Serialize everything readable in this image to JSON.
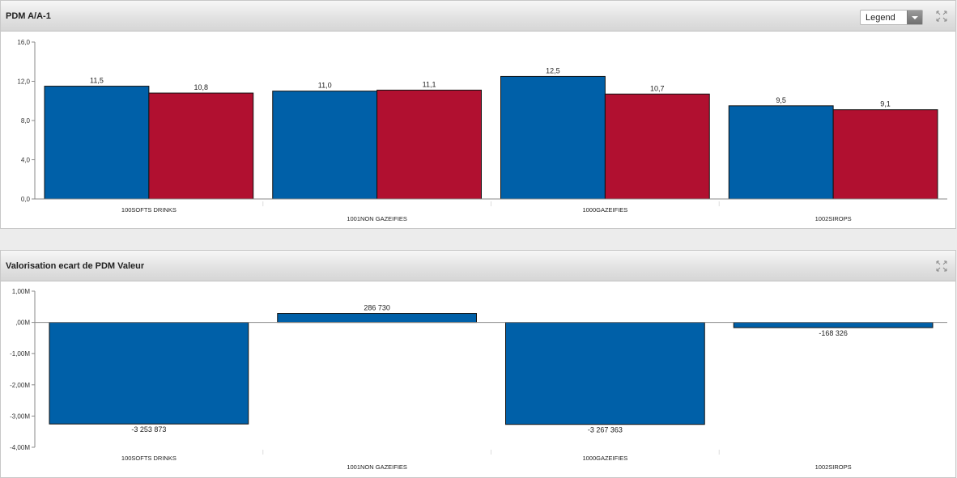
{
  "panels": [
    {
      "title": "PDM A/A-1",
      "legend_label": "Legend",
      "chart_data": {
        "type": "bar",
        "categories": [
          "100SOFTS DRINKS",
          "1001NON GAZEIFIES",
          "1000GAZEIFIES",
          "1002SIROPS"
        ],
        "series": [
          {
            "values": [
              11.5,
              11.0,
              12.5,
              9.5
            ],
            "labels": [
              "11,5",
              "11,0",
              "12,5",
              "9,5"
            ],
            "color": "#0060a8"
          },
          {
            "values": [
              10.8,
              11.1,
              10.7,
              9.1
            ],
            "labels": [
              "10,8",
              "11,1",
              "10,7",
              "9,1"
            ],
            "color": "#b11030"
          }
        ],
        "ylim": [
          0,
          16
        ],
        "yticks": [
          0,
          4,
          8,
          12,
          16
        ],
        "ytick_labels": [
          "0,0",
          "4,0",
          "8,0",
          "12,0",
          "16,0"
        ],
        "grid": false
      }
    },
    {
      "title": "Valorisation ecart de PDM Valeur",
      "chart_data": {
        "type": "bar",
        "categories": [
          "100SOFTS DRINKS",
          "1001NON GAZEIFIES",
          "1000GAZEIFIES",
          "1002SIROPS"
        ],
        "series": [
          {
            "values": [
              -3253873,
              286730,
              -3267363,
              -168326
            ],
            "labels": [
              "-3 253 873",
              "286 730",
              "-3 267 363",
              "-168 326"
            ],
            "color": "#0060a8"
          }
        ],
        "ylim": [
          -4000000,
          1000000
        ],
        "yticks": [
          1000000,
          0,
          -1000000,
          -2000000,
          -3000000,
          -4000000
        ],
        "ytick_labels": [
          "1,00M",
          ",00M",
          "-1,00M",
          "-2,00M",
          "-3,00M",
          "-4,00M"
        ],
        "grid": false
      }
    }
  ]
}
